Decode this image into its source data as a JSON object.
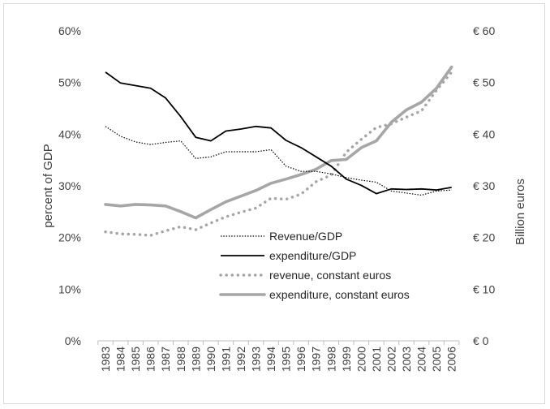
{
  "chart_data": {
    "type": "line",
    "title": "",
    "x": [
      "1983",
      "1984",
      "1985",
      "1986",
      "1987",
      "1988",
      "1989",
      "1990",
      "1991",
      "1992",
      "1993",
      "1994",
      "1995",
      "1996",
      "1997",
      "1998",
      "1999",
      "2000",
      "2001",
      "2002",
      "2003",
      "2004",
      "2005",
      "2006"
    ],
    "ylabel_left": "percent of GDP",
    "ylabel_right": "Billion euros",
    "ylim_left": [
      0,
      60
    ],
    "ylim_right": [
      0,
      60
    ],
    "yticks_left": [
      "0%",
      "10%",
      "20%",
      "30%",
      "40%",
      "50%",
      "60%"
    ],
    "yticks_right": [
      "€ 0",
      "€ 10",
      "€ 20",
      "€ 30",
      "€ 40",
      "€ 50",
      "€ 60"
    ],
    "grid": false,
    "legend_position": "bottom-center-inside",
    "series": [
      {
        "name": "Revenue/GDP",
        "axis": "left",
        "color": "#000000",
        "style": "dotted-thin",
        "values": [
          41.5,
          39.6,
          38.5,
          38.0,
          38.4,
          38.7,
          35.3,
          35.6,
          36.6,
          36.6,
          36.6,
          37.0,
          33.8,
          32.8,
          32.8,
          32.3,
          31.6,
          31.1,
          30.7,
          29.0,
          28.6,
          28.2,
          29.0,
          29.2
        ]
      },
      {
        "name": "expenditure/GDP",
        "axis": "left",
        "color": "#000000",
        "style": "solid-thin",
        "values": [
          52.0,
          49.9,
          49.4,
          48.9,
          47.0,
          43.4,
          39.4,
          38.7,
          40.6,
          41.0,
          41.5,
          41.2,
          38.8,
          37.4,
          35.6,
          33.8,
          31.3,
          30.1,
          28.5,
          29.4,
          29.3,
          29.4,
          29.2,
          29.7
        ]
      },
      {
        "name": "revenue, constant euros",
        "axis": "right",
        "color": "#a6a6a6",
        "style": "dotted-thick",
        "values": [
          21.1,
          20.7,
          20.6,
          20.4,
          21.3,
          22.1,
          21.5,
          22.8,
          24.0,
          24.9,
          25.7,
          27.6,
          27.4,
          28.4,
          30.8,
          32.1,
          36.5,
          39.0,
          41.3,
          42.0,
          43.3,
          44.5,
          48.5,
          52.0
        ]
      },
      {
        "name": "expenditure, constant euros",
        "axis": "right",
        "color": "#a6a6a6",
        "style": "solid-thick",
        "values": [
          26.4,
          26.1,
          26.4,
          26.3,
          26.1,
          25.0,
          23.8,
          25.4,
          26.9,
          28.0,
          29.1,
          30.5,
          31.3,
          32.2,
          33.2,
          34.9,
          35.1,
          37.4,
          38.7,
          42.3,
          44.7,
          46.2,
          48.9,
          53.0
        ]
      }
    ]
  }
}
